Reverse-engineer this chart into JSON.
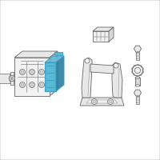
{
  "bg_color": "#ffffff",
  "border_color": "#c8c8c8",
  "line_color": "#666666",
  "line_color_light": "#999999",
  "face_light": "#f2f2f2",
  "face_mid": "#e8e8e8",
  "face_dark": "#d8d8d8",
  "blue_fill": "#5bb8d4",
  "blue_edge": "#3a9ec0",
  "blue_dark": "#2a7fa0",
  "figsize": [
    2.0,
    2.0
  ],
  "dpi": 100
}
